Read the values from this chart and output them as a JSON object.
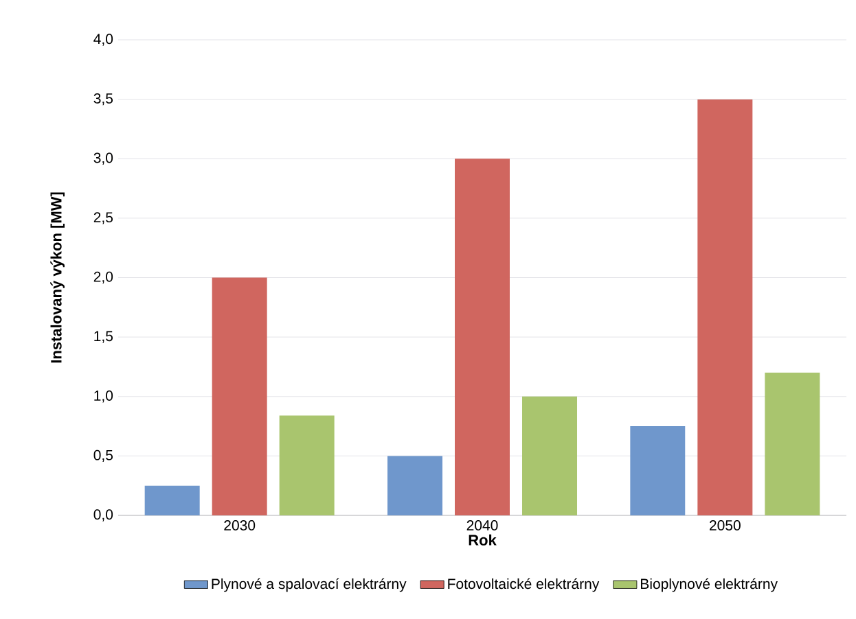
{
  "chart_data": {
    "type": "bar",
    "xlabel": "Rok",
    "ylabel": "Instalovaný výkon [MW]",
    "categories": [
      "2030",
      "2040",
      "2050"
    ],
    "series": [
      {
        "name": "Plynové a spalovací elektrárny",
        "color": "#6f97cc",
        "values": [
          0.25,
          0.5,
          0.75
        ]
      },
      {
        "name": "Fotovoltaické elektrárny",
        "color": "#d0665f",
        "values": [
          2.0,
          3.0,
          3.5
        ]
      },
      {
        "name": "Bioplynové elektrárny",
        "color": "#a9c56e",
        "values": [
          0.84,
          1.0,
          1.2
        ]
      }
    ],
    "ylim": [
      0,
      4
    ],
    "yticks": [
      {
        "value": 0,
        "label": "0,0"
      },
      {
        "value": 0.5,
        "label": "0,5"
      },
      {
        "value": 1,
        "label": "1,0"
      },
      {
        "value": 1.5,
        "label": "1,5"
      },
      {
        "value": 2,
        "label": "2,0"
      },
      {
        "value": 2.5,
        "label": "2,5"
      },
      {
        "value": 3,
        "label": "3,0"
      },
      {
        "value": 3.5,
        "label": "3,5"
      },
      {
        "value": 4,
        "label": "4,0"
      }
    ],
    "grid": "y",
    "legend": "bottom"
  }
}
